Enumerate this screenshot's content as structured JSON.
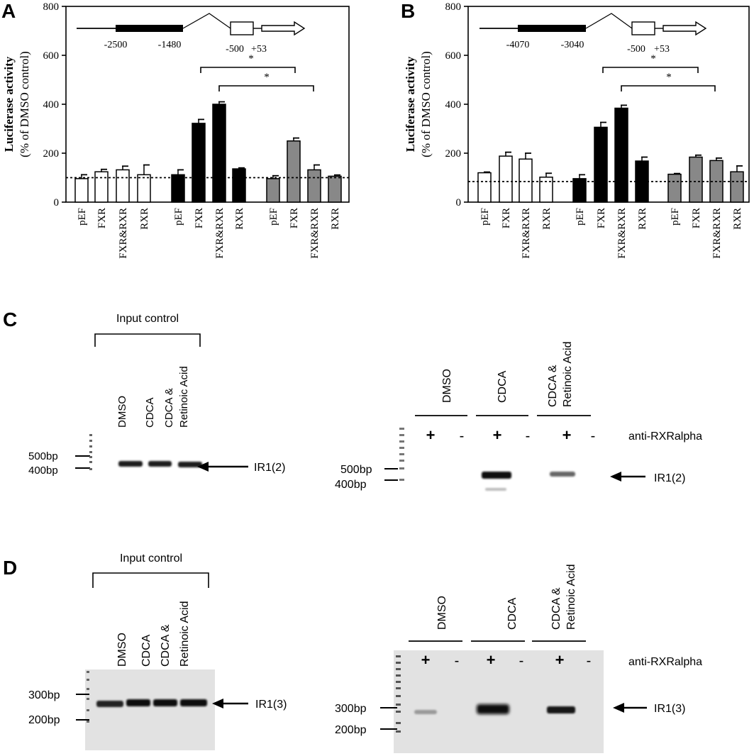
{
  "panels": {
    "a": {
      "letter": "A"
    },
    "b": {
      "letter": "B"
    },
    "c": {
      "letter": "C"
    },
    "d": {
      "letter": "D"
    }
  },
  "chart_data": [
    {
      "type": "bar",
      "panel": "A",
      "ylabel_line1": "Luciferase activity",
      "ylabel_line2": "(% of DMSO control)",
      "ylim": [
        0,
        800
      ],
      "yticks": [
        "0",
        "200",
        "400",
        "600",
        "800"
      ],
      "reference_line": 100,
      "groups": [
        {
          "fill": "#ffffff",
          "categories": [
            "pEF",
            "FXR",
            "FXR&RXR",
            "RXR"
          ],
          "values": [
            96,
            124,
            132,
            112
          ],
          "errors": [
            16,
            10,
            15,
            40
          ]
        },
        {
          "fill": "#000000",
          "categories": [
            "pEF",
            "FXR",
            "FXR&RXR",
            "RXR"
          ],
          "values": [
            112,
            322,
            400,
            136
          ],
          "errors": [
            20,
            16,
            10,
            4
          ]
        },
        {
          "fill": "#888888",
          "categories": [
            "pEF",
            "FXR",
            "FXR&RXR",
            "RXR"
          ],
          "values": [
            96,
            250,
            132,
            106
          ],
          "errors": [
            12,
            12,
            20,
            5
          ]
        }
      ],
      "significance": [
        {
          "from_group": 1,
          "from_index": 1,
          "to_group": 2,
          "to_index": 1,
          "label": "*"
        },
        {
          "from_group": 1,
          "from_index": 2,
          "to_group": 2,
          "to_index": 2,
          "label": "*"
        }
      ],
      "construct": {
        "labels": [
          "-2500",
          "-1480",
          "-500",
          "+53"
        ]
      }
    },
    {
      "type": "bar",
      "panel": "B",
      "ylabel_line1": "Luciferase activity",
      "ylabel_line2": "(% of DMSO control)",
      "ylim": [
        0,
        800
      ],
      "yticks": [
        "0",
        "200",
        "400",
        "600",
        "800"
      ],
      "reference_line": 84,
      "groups": [
        {
          "fill": "#ffffff",
          "categories": [
            "pEF",
            "FXR",
            "FXR&RXR",
            "RXR"
          ],
          "values": [
            120,
            188,
            176,
            102
          ],
          "errors": [
            3,
            16,
            24,
            16
          ]
        },
        {
          "fill": "#000000",
          "categories": [
            "pEF",
            "FXR",
            "FXR&RXR",
            "RXR"
          ],
          "values": [
            96,
            306,
            384,
            168
          ],
          "errors": [
            16,
            20,
            12,
            16
          ]
        },
        {
          "fill": "#888888",
          "categories": [
            "pEF",
            "FXR",
            "FXR&RXR",
            "RXR"
          ],
          "values": [
            114,
            184,
            170,
            124
          ],
          "errors": [
            3,
            8,
            10,
            24
          ]
        }
      ],
      "significance": [
        {
          "from_group": 1,
          "from_index": 1,
          "to_group": 2,
          "to_index": 1,
          "label": "*"
        },
        {
          "from_group": 1,
          "from_index": 2,
          "to_group": 2,
          "to_index": 2,
          "label": "*"
        }
      ],
      "construct": {
        "labels": [
          "-4070",
          "-3040",
          "-500",
          "+53"
        ]
      }
    }
  ],
  "gels": {
    "c_left": {
      "title": "Input control",
      "lanes": [
        "DMSO",
        "CDCA",
        "CDCA &",
        "Retinoic Acid"
      ],
      "markers": [
        "500bp",
        "400bp"
      ],
      "band_label": "IR1(2)"
    },
    "c_right": {
      "lanes": [
        "DMSO",
        "CDCA",
        "CDCA &",
        "Retinoic Acid"
      ],
      "antibody": "anti-RXRalpha",
      "plus": "+",
      "minus": "-",
      "markers": [
        "500bp",
        "400bp"
      ],
      "band_label": "IR1(2)"
    },
    "d_left": {
      "title": "Input control",
      "lanes": [
        "DMSO",
        "CDCA",
        "CDCA &",
        "Retinoic Acid"
      ],
      "markers": [
        "300bp",
        "200bp"
      ],
      "band_label": "IR1(3)"
    },
    "d_right": {
      "lanes": [
        "DMSO",
        "CDCA",
        "CDCA &",
        "Retinoic Acid"
      ],
      "antibody": "anti-RXRalpha",
      "plus": "+",
      "minus": "-",
      "markers": [
        "300bp",
        "200bp"
      ],
      "band_label": "IR1(3)"
    }
  }
}
